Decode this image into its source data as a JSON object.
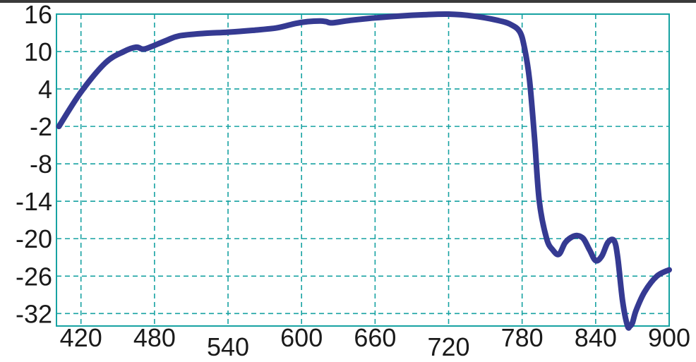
{
  "chart_data": {
    "type": "line",
    "title": "",
    "xlabel": "",
    "ylabel": "",
    "xlim": [
      400,
      900
    ],
    "ylim": [
      -34,
      16
    ],
    "grid": true,
    "x_ticks": [
      420,
      480,
      540,
      600,
      660,
      720,
      780,
      840,
      900
    ],
    "y_ticks": [
      16,
      10,
      4,
      -2,
      -8,
      -14,
      -20,
      -26,
      -32
    ],
    "x_tick_labels": [
      "420",
      "480",
      "540",
      "600",
      "660",
      "720",
      "780",
      "840",
      "900"
    ],
    "y_tick_labels": [
      "16",
      "10",
      "4",
      "-2",
      "-8",
      "-14",
      "-20",
      "-26",
      "-32"
    ],
    "series": [
      {
        "color": "#353a92",
        "x": [
          402,
          420,
          440,
          455,
          465,
          470,
          475,
          490,
          500,
          520,
          540,
          560,
          580,
          595,
          605,
          615,
          620,
          625,
          640,
          660,
          680,
          700,
          720,
          740,
          760,
          770,
          778,
          782,
          786,
          790,
          794,
          800,
          805,
          810,
          815,
          820,
          825,
          830,
          835,
          840,
          845,
          850,
          855,
          858,
          862,
          866,
          868,
          870,
          873,
          880,
          890,
          900
        ],
        "y": [
          -2.0,
          3.5,
          8.2,
          10.0,
          10.7,
          10.4,
          10.6,
          11.8,
          12.5,
          12.9,
          13.1,
          13.4,
          13.8,
          14.5,
          14.8,
          14.9,
          14.8,
          14.6,
          15.0,
          15.4,
          15.7,
          15.9,
          16.0,
          15.7,
          15.0,
          14.4,
          13.2,
          10.5,
          5.5,
          -3.5,
          -14.0,
          -20.0,
          -21.8,
          -22.5,
          -20.7,
          -19.8,
          -19.5,
          -20.0,
          -21.8,
          -23.5,
          -22.8,
          -20.6,
          -20.3,
          -23.0,
          -30.0,
          -34.0,
          -34.0,
          -33.5,
          -31.5,
          -28.5,
          -26.0,
          -25.0
        ]
      }
    ]
  }
}
